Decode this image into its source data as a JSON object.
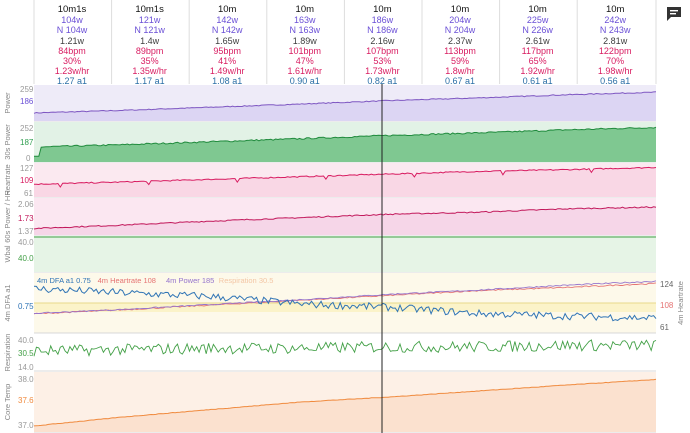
{
  "columns": [
    {
      "duration": "10m1s",
      "power": "104w",
      "np": "N 104w",
      "wkg": "1.21w",
      "hr": "84bpm",
      "pct": "30%",
      "eff": "1.23w/hr",
      "dfa": "1.27 a1"
    },
    {
      "duration": "10m1s",
      "power": "121w",
      "np": "N 121w",
      "wkg": "1.4w",
      "hr": "89bpm",
      "pct": "35%",
      "eff": "1.35w/hr",
      "dfa": "1.17 a1"
    },
    {
      "duration": "10m",
      "power": "142w",
      "np": "N 142w",
      "wkg": "1.65w",
      "hr": "95bpm",
      "pct": "41%",
      "eff": "1.49w/hr",
      "dfa": "1.08 a1"
    },
    {
      "duration": "10m",
      "power": "163w",
      "np": "N 163w",
      "wkg": "1.89w",
      "hr": "101bpm",
      "pct": "47%",
      "eff": "1.61w/hr",
      "dfa": "0.90 a1"
    },
    {
      "duration": "10m",
      "power": "186w",
      "np": "N 186w",
      "wkg": "2.16w",
      "hr": "107bpm",
      "pct": "53%",
      "eff": "1.73w/hr",
      "dfa": "0.82 a1"
    },
    {
      "duration": "10m",
      "power": "204w",
      "np": "N 204w",
      "wkg": "2.37w",
      "hr": "113bpm",
      "pct": "59%",
      "eff": "1.8w/hr",
      "dfa": "0.67 a1"
    },
    {
      "duration": "10m",
      "power": "225w",
      "np": "N 226w",
      "wkg": "2.61w",
      "hr": "117bpm",
      "pct": "65%",
      "eff": "1.92w/hr",
      "dfa": "0.61 a1"
    },
    {
      "duration": "10m",
      "power": "242w",
      "np": "N 243w",
      "wkg": "2.81w",
      "hr": "122bpm",
      "pct": "70%",
      "eff": "1.98w/hr",
      "dfa": "0.56 a1"
    }
  ],
  "chart_data": [
    {
      "type": "area",
      "name": "power",
      "ylabel": "Power",
      "ticks": [
        "259",
        "186"
      ],
      "y_range": [
        50,
        290
      ],
      "series": [
        {
          "name": "Power",
          "color": "#7e57c2",
          "values": [
            104,
            121,
            142,
            163,
            186,
            204,
            225,
            242
          ]
        }
      ]
    },
    {
      "type": "area",
      "name": "power-30s",
      "ylabel": "30s Power",
      "ticks": [
        "252",
        "187",
        "0"
      ],
      "y_range": [
        0,
        280
      ],
      "series": [
        {
          "name": "30s Power",
          "color": "#2e9e4f",
          "values": [
            104,
            121,
            142,
            163,
            186,
            204,
            225,
            242
          ]
        }
      ]
    },
    {
      "type": "area",
      "name": "heartrate",
      "ylabel": "Heartrate",
      "ticks": [
        "127",
        "109",
        "61"
      ],
      "y_range": [
        55,
        132
      ],
      "series": [
        {
          "name": "Heartrate",
          "color": "#d81b60",
          "values": [
            84,
            89,
            95,
            101,
            107,
            113,
            117,
            122
          ]
        }
      ]
    },
    {
      "type": "area",
      "name": "power-hr-60s",
      "ylabel": "60s Power / HR",
      "ticks": [
        "2.06",
        "1.73",
        "1.37"
      ],
      "y_range": [
        1.0,
        2.3
      ],
      "series": [
        {
          "name": "60s Power / HR",
          "color": "#c2185b",
          "values": [
            1.23,
            1.35,
            1.49,
            1.61,
            1.73,
            1.8,
            1.92,
            1.98
          ]
        }
      ]
    },
    {
      "type": "area",
      "name": "wbal",
      "ylabel": "Wbal",
      "ticks": [
        "40.0",
        "40.0"
      ],
      "y_range": [
        0,
        45
      ],
      "series": [
        {
          "name": "Wbal",
          "color": "#43a047",
          "values": [
            40,
            40,
            40,
            40,
            40,
            40,
            40,
            40
          ]
        }
      ]
    },
    {
      "type": "line",
      "name": "dfa",
      "ylabel": "4m DFA a1",
      "ylabel_right": "4m Heartrate",
      "ticks": [
        "0.75"
      ],
      "ticks_right": [
        "124",
        "108",
        "61"
      ],
      "legend": [
        "4m DFA a1 0.75",
        "4m Heartrate 108",
        "4m Power 185",
        "Respiration 30.5"
      ],
      "series": [
        {
          "name": "4m DFA a1",
          "color": "#2f74b5",
          "values": [
            1.27,
            1.17,
            1.08,
            0.9,
            0.82,
            0.67,
            0.61,
            0.56
          ]
        },
        {
          "name": "4m Heartrate",
          "color": "#e57373",
          "values": [
            84,
            89,
            95,
            101,
            107,
            113,
            117,
            122
          ]
        },
        {
          "name": "4m Power",
          "color": "#9575cd",
          "values": [
            104,
            121,
            142,
            163,
            186,
            204,
            225,
            242
          ]
        }
      ]
    },
    {
      "type": "line",
      "name": "respiration",
      "ylabel": "Respiration",
      "ticks": [
        "40.0",
        "30.5",
        "14.0"
      ],
      "y_range": [
        14,
        40
      ],
      "series": [
        {
          "name": "Respiration",
          "color": "#43a047",
          "values": [
            28,
            29,
            30,
            30,
            31,
            31,
            32,
            32
          ]
        }
      ]
    },
    {
      "type": "area",
      "name": "core-temp",
      "ylabel": "Core Temp",
      "ticks": [
        "38.0",
        "37.6",
        "37.0"
      ],
      "y_range": [
        36.9,
        38.1
      ],
      "series": [
        {
          "name": "Core Temp",
          "color": "#f08a3e",
          "values": [
            37.02,
            37.2,
            37.35,
            37.5,
            37.6,
            37.72,
            37.84,
            37.95
          ]
        }
      ]
    }
  ]
}
